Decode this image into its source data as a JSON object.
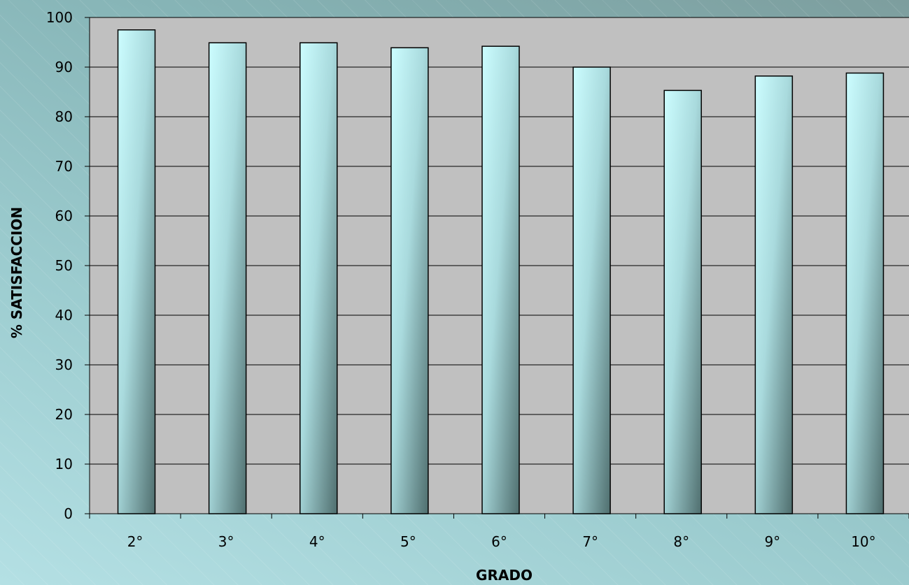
{
  "chart_data": {
    "type": "bar",
    "categories": [
      "2°",
      "3°",
      "4°",
      "5°",
      "6°",
      "7°",
      "8°",
      "9°",
      "10°"
    ],
    "values": [
      97.5,
      94.9,
      94.9,
      93.9,
      94.2,
      90.0,
      85.3,
      88.2,
      88.8
    ],
    "title": "",
    "xlabel": "GRADO",
    "ylabel": "% SATISFACCION",
    "ylim": [
      0,
      100
    ],
    "yticks": [
      "0",
      "10",
      "20",
      "30",
      "40",
      "50",
      "60",
      "70",
      "80",
      "90",
      "100"
    ],
    "grid": true,
    "legend": "none",
    "colors": {
      "plot_area": "#c0c0c0",
      "bar_light": "#ccfdff",
      "bar_mid": "#8fbcbf",
      "bar_dark": "#4f6e6e",
      "gridline": "#000000"
    }
  }
}
